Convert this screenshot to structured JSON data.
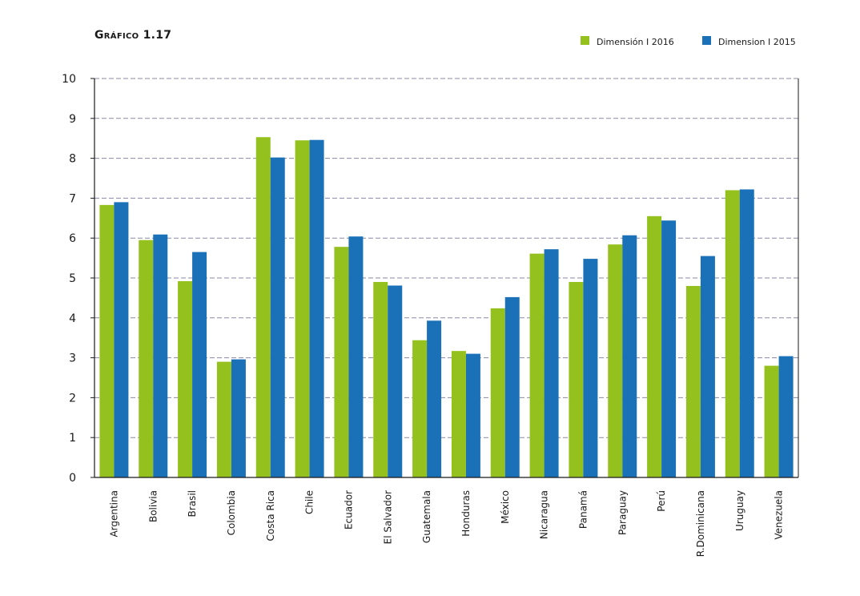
{
  "title": "Gráfico 1.17",
  "chart_data": {
    "type": "bar",
    "categories": [
      "Argentina",
      "Bolivia",
      "Brasil",
      "Colombia",
      "Costa Rica",
      "Chile",
      "Ecuador",
      "El Salvador",
      "Guatemala",
      "Honduras",
      "México",
      "Nicaragua",
      "Panamá",
      "Paraguay",
      "Perú",
      "R.Dominicana",
      "Uruguay",
      "Venezuela"
    ],
    "series": [
      {
        "name": "Dimensión I 2016",
        "color": "#95c11f",
        "values": [
          6.83,
          5.95,
          4.92,
          2.9,
          8.53,
          8.45,
          5.78,
          4.9,
          3.44,
          3.17,
          4.24,
          5.61,
          4.9,
          5.84,
          6.55,
          4.8,
          7.2,
          2.8
        ]
      },
      {
        "name": "Dimension I 2015",
        "color": "#1a71b8",
        "values": [
          6.9,
          6.09,
          5.65,
          2.96,
          8.02,
          8.46,
          6.04,
          4.81,
          3.93,
          3.1,
          4.52,
          5.72,
          5.48,
          6.07,
          6.44,
          5.55,
          7.22,
          3.04
        ]
      }
    ],
    "ylim": [
      0,
      10
    ],
    "yticks": [
      0,
      1,
      2,
      3,
      4,
      5,
      6,
      7,
      8,
      9,
      10
    ],
    "grid": true,
    "legend_position": "top-right"
  }
}
